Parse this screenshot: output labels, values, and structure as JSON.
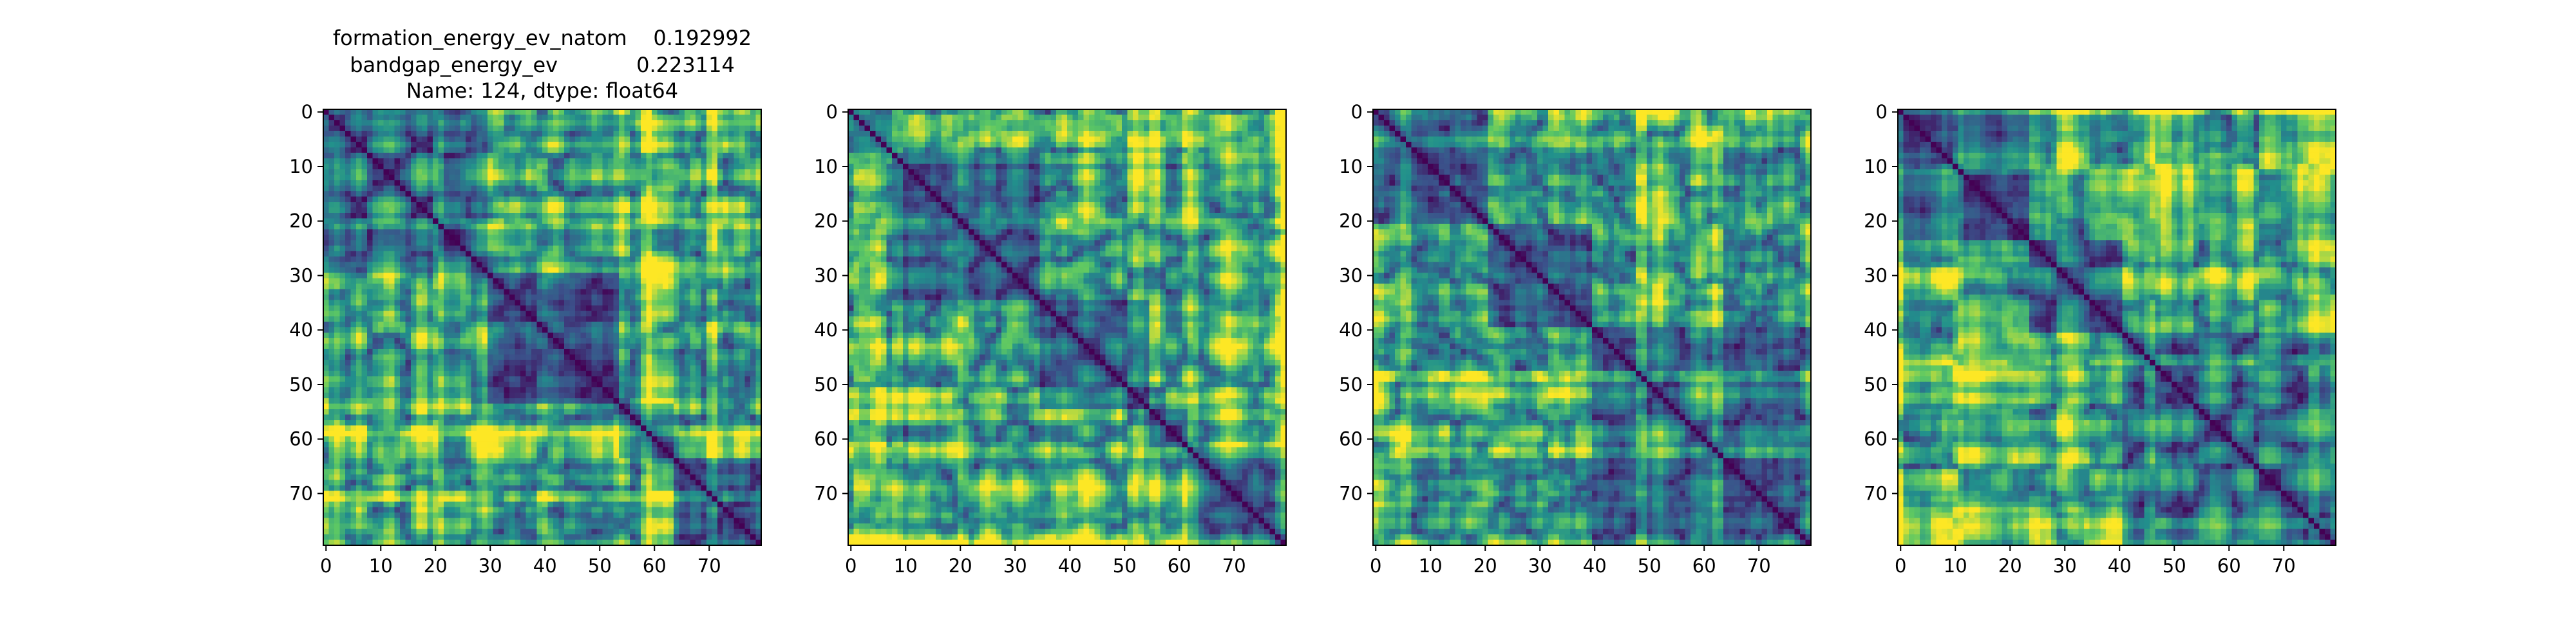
{
  "title_lines": [
    "formation_energy_ev_natom    0.192992",
    "bandgap_energy_ev            0.223114",
    "Name: 124, dtype: float64"
  ],
  "colormap": [
    "#440154",
    "#3b528b",
    "#21908c",
    "#5dc863",
    "#fde725"
  ],
  "chart_data": [
    {
      "type": "heatmap",
      "size": 80,
      "xticks": [
        0,
        10,
        20,
        30,
        40,
        50,
        60,
        70
      ],
      "yticks": [
        0,
        10,
        20,
        30,
        40,
        50,
        60,
        70
      ],
      "xtick_labels": [
        "0",
        "10",
        "20",
        "30",
        "40",
        "50",
        "60",
        "70"
      ],
      "ytick_labels": [
        "0",
        "10",
        "20",
        "30",
        "40",
        "50",
        "60",
        "70"
      ],
      "value_range": [
        0,
        1
      ],
      "diagonal": 0,
      "blocks": [
        0,
        30,
        54,
        64,
        80
      ],
      "bright_bands": [
        20,
        58,
        70
      ],
      "seed": 11
    },
    {
      "type": "heatmap",
      "size": 80,
      "xticks": [
        0,
        10,
        20,
        30,
        40,
        50,
        60,
        70
      ],
      "yticks": [
        0,
        10,
        20,
        30,
        40,
        50,
        60,
        70
      ],
      "xtick_labels": [
        "0",
        "10",
        "20",
        "30",
        "40",
        "50",
        "60",
        "70"
      ],
      "ytick_labels": [
        "0",
        "10",
        "20",
        "30",
        "40",
        "50",
        "60",
        "70"
      ],
      "value_range": [
        0,
        1
      ],
      "diagonal": 0,
      "blocks": [
        0,
        8,
        35,
        55,
        62,
        80
      ],
      "bright_bands": [
        1,
        3,
        5,
        8,
        62
      ],
      "seed": 23
    },
    {
      "type": "heatmap",
      "size": 80,
      "xticks": [
        0,
        10,
        20,
        30,
        40,
        50,
        60,
        70
      ],
      "yticks": [
        0,
        10,
        20,
        30,
        40,
        50,
        60,
        70
      ],
      "xtick_labels": [
        "0",
        "10",
        "20",
        "30",
        "40",
        "50",
        "60",
        "70"
      ],
      "ytick_labels": [
        "0",
        "10",
        "20",
        "30",
        "40",
        "50",
        "60",
        "70"
      ],
      "value_range": [
        0,
        1
      ],
      "diagonal": 0,
      "blocks": [
        0,
        21,
        40,
        80
      ],
      "bright_bands": [
        5,
        48,
        62
      ],
      "seed": 37
    },
    {
      "type": "heatmap",
      "size": 80,
      "xticks": [
        0,
        10,
        20,
        30,
        40,
        50,
        60,
        70
      ],
      "yticks": [
        0,
        10,
        20,
        30,
        40,
        50,
        60,
        70
      ],
      "xtick_labels": [
        "0",
        "10",
        "20",
        "30",
        "40",
        "50",
        "60",
        "70"
      ],
      "ytick_labels": [
        "0",
        "10",
        "20",
        "30",
        "40",
        "50",
        "60",
        "70"
      ],
      "value_range": [
        0,
        1
      ],
      "diagonal": 0,
      "blocks": [
        0,
        24,
        41,
        80
      ],
      "bright_bands": [
        10,
        45,
        75
      ],
      "seed": 51
    }
  ]
}
